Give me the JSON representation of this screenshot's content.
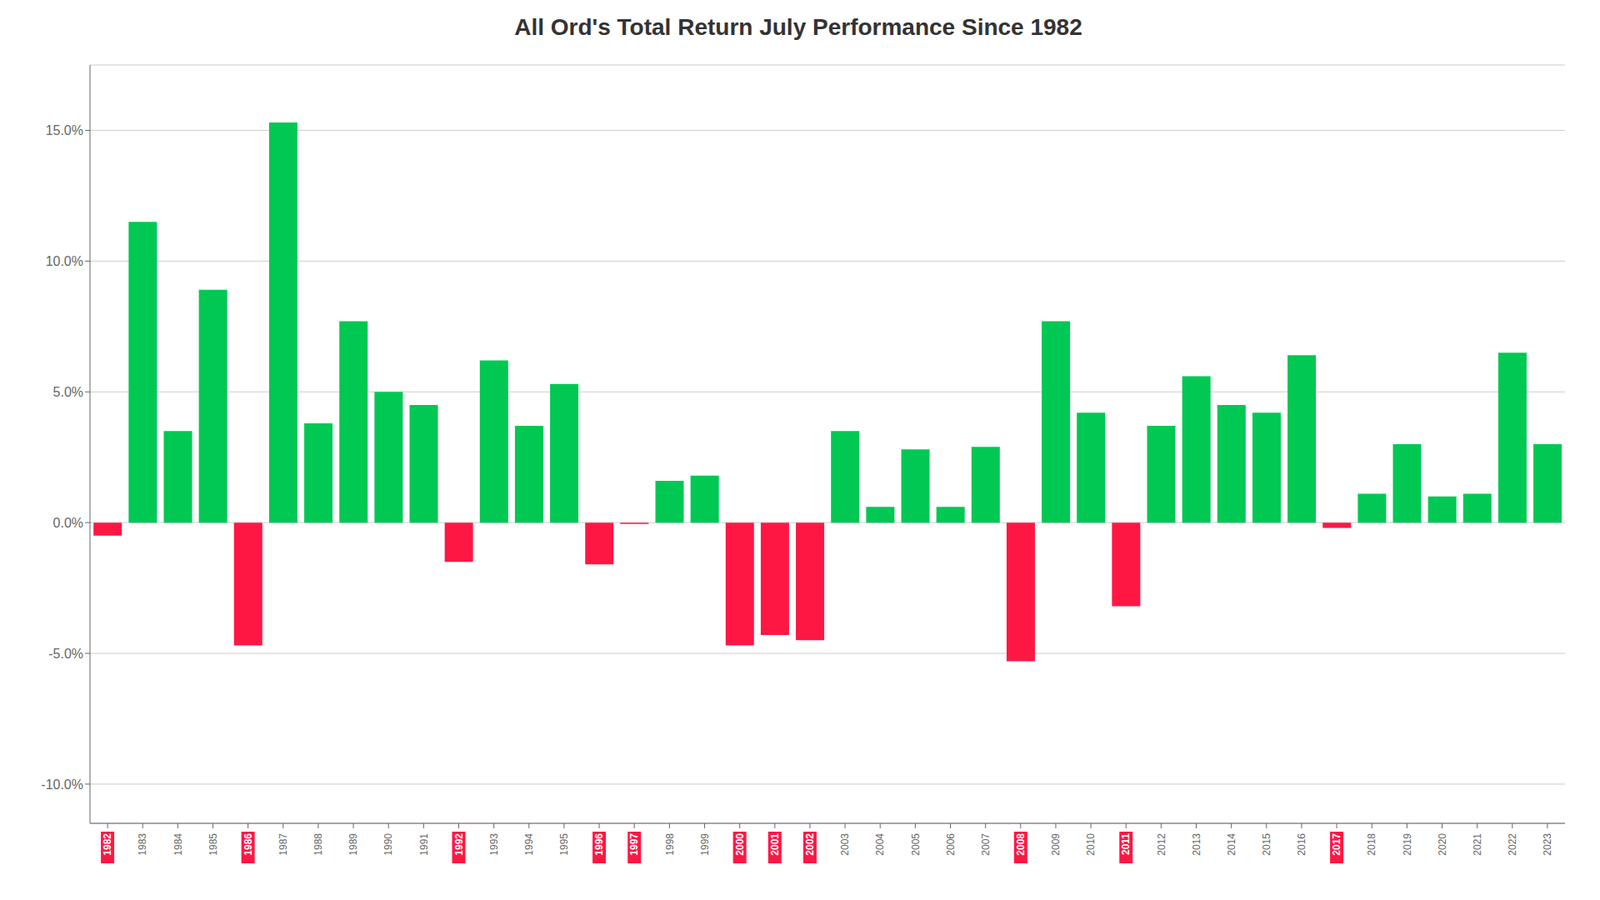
{
  "chart_data": {
    "type": "bar",
    "title": "All Ord's Total Return July Performance Since 1982",
    "categories": [
      "1982",
      "1983",
      "1984",
      "1985",
      "1986",
      "1987",
      "1988",
      "1989",
      "1990",
      "1991",
      "1992",
      "1993",
      "1994",
      "1995",
      "1996",
      "1997",
      "1998",
      "1999",
      "2000",
      "2001",
      "2002",
      "2003",
      "2004",
      "2005",
      "2006",
      "2007",
      "2008",
      "2009",
      "2010",
      "2011",
      "2012",
      "2013",
      "2014",
      "2015",
      "2016",
      "2017",
      "2018",
      "2019",
      "2020",
      "2021",
      "2022",
      "2023"
    ],
    "values": [
      -0.5,
      11.5,
      3.5,
      8.9,
      -4.7,
      15.3,
      3.8,
      7.7,
      5.0,
      4.5,
      -1.5,
      6.2,
      3.7,
      5.3,
      -1.6,
      -0.05,
      1.6,
      1.8,
      -4.7,
      -4.3,
      -4.5,
      3.5,
      0.6,
      2.8,
      0.6,
      2.9,
      -5.3,
      7.7,
      4.2,
      -3.2,
      3.7,
      5.6,
      4.5,
      4.2,
      6.4,
      -0.2,
      1.1,
      3.0,
      1.0,
      1.1,
      6.5,
      3.0
    ],
    "colors": [
      "#ff1744",
      "#00c853",
      "#00c853",
      "#00c853",
      "#ff1744",
      "#00c853",
      "#00c853",
      "#00c853",
      "#00c853",
      "#00c853",
      "#ff1744",
      "#00c853",
      "#00c853",
      "#00c853",
      "#ff1744",
      "#ff1744",
      "#00c853",
      "#00c853",
      "#ff1744",
      "#ff1744",
      "#ff1744",
      "#00c853",
      "#00c853",
      "#00c853",
      "#00c853",
      "#00c853",
      "#ff1744",
      "#00c853",
      "#00c853",
      "#ff1744",
      "#00c853",
      "#00c853",
      "#00c853",
      "#00c853",
      "#00c853",
      "#ff1744",
      "#00c853",
      "#00c853",
      "#00c853",
      "#00c853",
      "#00c853",
      "#00c853"
    ],
    "ylim": [
      -11.5,
      17.5
    ],
    "yticks": [
      {
        "value": -10.0,
        "label": "-10.0%"
      },
      {
        "value": -5.0,
        "label": "-5.0%"
      },
      {
        "value": 0.0,
        "label": "0.0%"
      },
      {
        "value": 5.0,
        "label": "5.0%"
      },
      {
        "value": 10.0,
        "label": "10.0%"
      },
      {
        "value": 15.0,
        "label": "15.0%"
      }
    ],
    "grid": true
  }
}
